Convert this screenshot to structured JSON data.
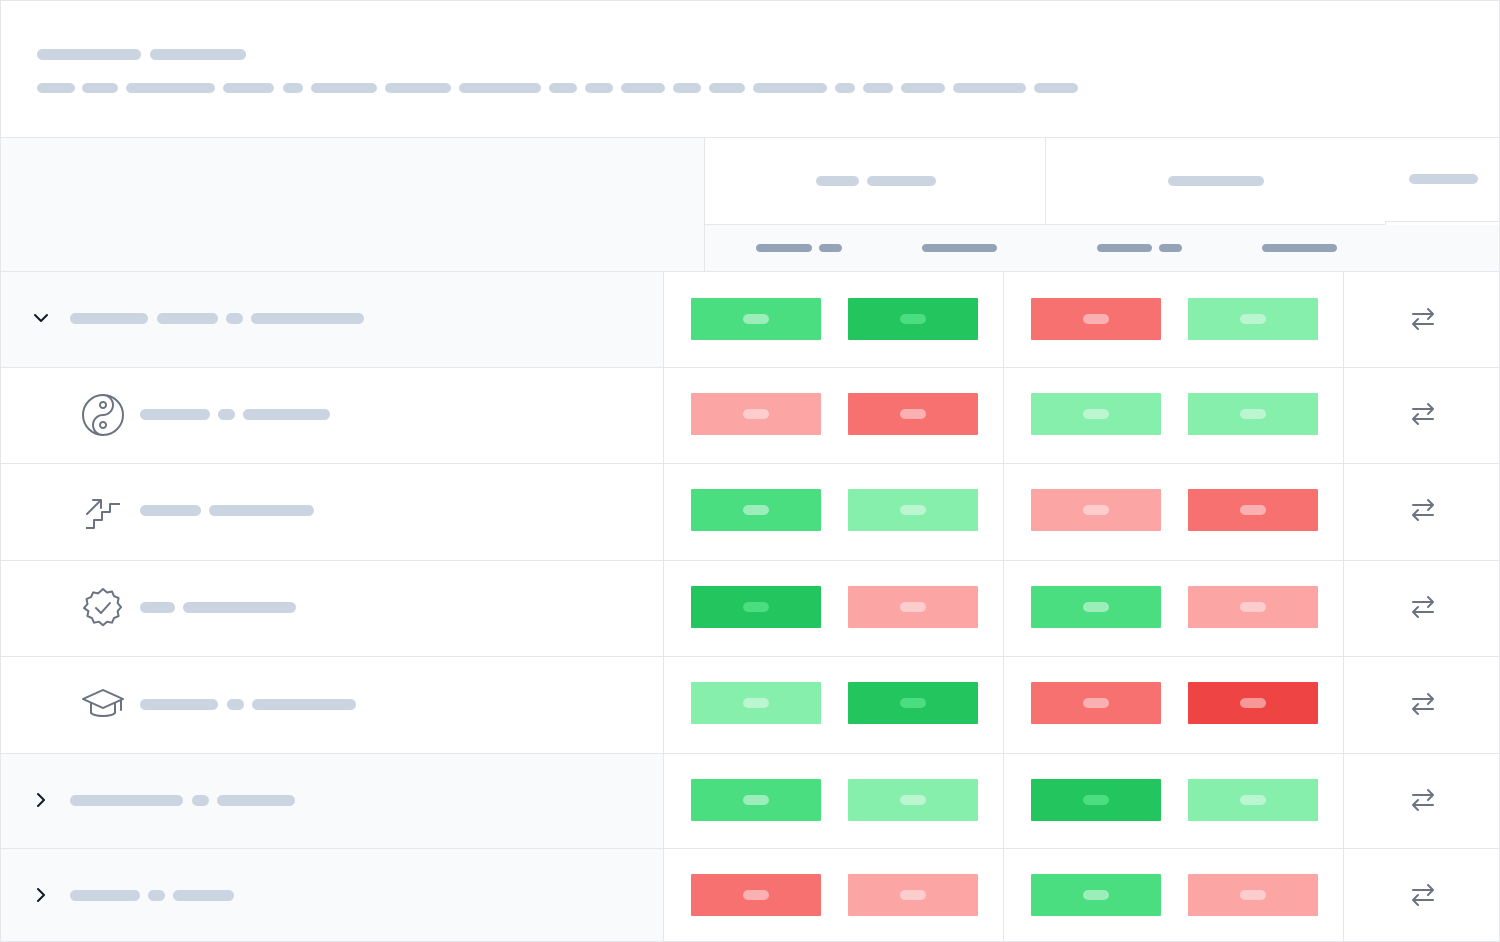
{
  "header": {
    "title_placeholders": 2,
    "subtitle_placeholders": 18
  },
  "colors": {
    "green": "#4ade80",
    "dark_green": "#22c55e",
    "light_green": "#86efac",
    "red": "#f87171",
    "light_red": "#fca5a5",
    "dark_red": "#ef4444",
    "placeholder": "#cbd5e1",
    "placeholder_dark": "#94a3b8"
  },
  "table": {
    "rows": [
      {
        "kind": "group",
        "expanded": true,
        "icon": "chevron-down-icon",
        "cells": [
          "green",
          "dark_green",
          "red",
          "light_green"
        ]
      },
      {
        "kind": "item",
        "icon": "yin-yang-icon",
        "cells": [
          "light_red",
          "red",
          "light_green",
          "light_green"
        ]
      },
      {
        "kind": "item",
        "icon": "stairs-arrow-icon",
        "cells": [
          "green",
          "light_green",
          "light_red",
          "red"
        ]
      },
      {
        "kind": "item",
        "icon": "badge-check-icon",
        "cells": [
          "dark_green",
          "light_red",
          "green",
          "light_red"
        ]
      },
      {
        "kind": "item",
        "icon": "graduation-cap-icon",
        "cells": [
          "light_green",
          "dark_green",
          "red",
          "dark_red"
        ]
      },
      {
        "kind": "group",
        "expanded": false,
        "icon": "chevron-right-icon",
        "cells": [
          "green",
          "light_green",
          "dark_green",
          "light_green"
        ]
      },
      {
        "kind": "group",
        "expanded": false,
        "icon": "chevron-right-icon",
        "cells": [
          "red",
          "light_red",
          "green",
          "light_red"
        ]
      }
    ],
    "action_icon": "swap-arrows-icon"
  }
}
